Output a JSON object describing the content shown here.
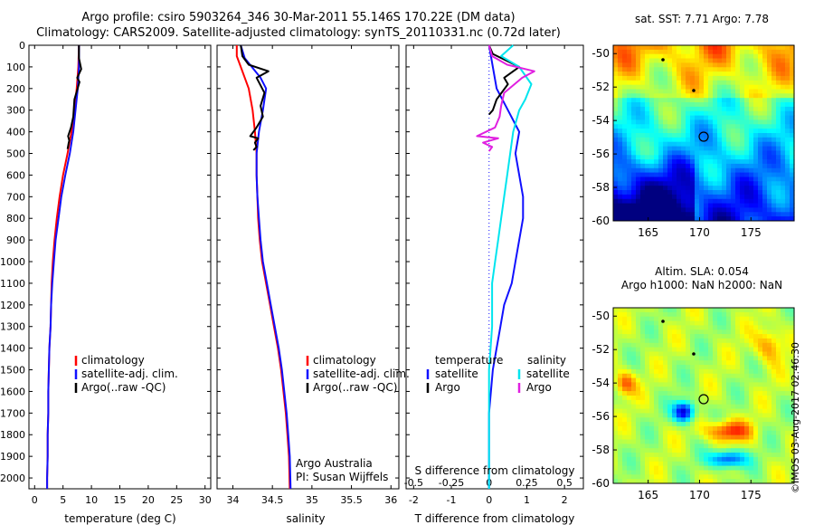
{
  "header": {
    "title_line1": "Argo profile: csiro 5903264_346 30-Mar-2011 55.146S 170.22E (DM data)",
    "title_line2": "Climatology: CARS2009. Satellite-adjusted climatology: synTS_20110331.nc (0.72d later)"
  },
  "map_top": {
    "title": "sat. SST: 7.71 Argo: 7.78",
    "xticks": [
      165,
      170,
      175
    ],
    "yticks": [
      -50,
      -52,
      -54,
      -56,
      -58,
      -60
    ]
  },
  "map_bottom": {
    "title_line1": "Altim. SLA: 0.054",
    "title_line2": "Argo h1000: NaN h2000: NaN",
    "xticks": [
      165,
      170,
      175
    ],
    "yticks": [
      -50,
      -52,
      -54,
      -56,
      -58,
      -60
    ]
  },
  "footer": {
    "stamp": "©IMOS 03-Aug-2017 02:46:30",
    "credit_line1": "Argo Australia",
    "credit_line2": "PI: Susan Wijffels"
  },
  "colors": {
    "climatology": "#ff0000",
    "satellite": "#1010ff",
    "argo": "#000000",
    "sal_satellite": "#00e5ee",
    "sal_argo": "#e020e0"
  },
  "chart_data": [
    {
      "type": "line",
      "xlabel": "temperature (deg C)",
      "ylabel": "",
      "xlim": [
        -1,
        31
      ],
      "xticks": [
        0,
        5,
        10,
        15,
        20,
        25,
        30
      ],
      "ylim": [
        2050,
        0
      ],
      "yticks": [
        0,
        100,
        200,
        300,
        400,
        500,
        600,
        700,
        800,
        900,
        1000,
        1100,
        1200,
        1300,
        1400,
        1500,
        1600,
        1700,
        1800,
        1900,
        2000
      ],
      "legend": [
        "climatology",
        "satellite-adj. clim.",
        "Argo(..raw -QC)"
      ],
      "series": [
        {
          "name": "climatology",
          "x": [
            7.8,
            7.7,
            7.4,
            7.0,
            6.5,
            5.8,
            5.0,
            4.4,
            3.9,
            3.5,
            3.2,
            3.0,
            2.9,
            2.8,
            2.6,
            2.5,
            2.4,
            2.4,
            2.3,
            2.3,
            2.2,
            2.2
          ],
          "y": [
            0,
            100,
            200,
            300,
            400,
            500,
            600,
            700,
            800,
            900,
            1000,
            1100,
            1200,
            1300,
            1400,
            1500,
            1600,
            1700,
            1800,
            1900,
            2000,
            2050
          ]
        },
        {
          "name": "satellite-adj. clim.",
          "x": [
            7.8,
            7.8,
            7.6,
            7.2,
            6.8,
            6.2,
            5.4,
            4.7,
            4.2,
            3.7,
            3.4,
            3.1,
            2.9,
            2.8,
            2.6,
            2.5,
            2.4,
            2.4,
            2.3,
            2.3,
            2.2,
            2.2
          ],
          "y": [
            0,
            100,
            200,
            300,
            400,
            500,
            600,
            700,
            800,
            900,
            1000,
            1100,
            1200,
            1300,
            1400,
            1500,
            1600,
            1700,
            1800,
            1900,
            2000,
            2050
          ]
        },
        {
          "name": "Argo(..raw -QC)",
          "x": [
            7.8,
            7.8,
            8.2,
            7.5,
            7.9,
            7.0,
            6.8,
            6.4,
            5.9,
            6.1,
            6.0,
            5.8
          ],
          "y": [
            0,
            60,
            110,
            150,
            170,
            250,
            330,
            380,
            420,
            440,
            450,
            480
          ]
        }
      ]
    },
    {
      "type": "line",
      "xlabel": "salinity",
      "ylabel": "",
      "xlim": [
        33.8,
        36.1
      ],
      "xticks": [
        34,
        34.5,
        35,
        35.5,
        36
      ],
      "ylim": [
        2050,
        0
      ],
      "legend": [
        "climatology",
        "satellite-adj. clim.",
        "Argo(..raw -QC)"
      ],
      "series": [
        {
          "name": "climatology",
          "x": [
            34.05,
            34.05,
            34.1,
            34.2,
            34.25,
            34.28,
            34.3,
            34.3,
            34.31,
            34.32,
            34.34,
            34.37,
            34.42,
            34.47,
            34.52,
            34.57,
            34.61,
            34.64,
            34.67,
            34.69,
            34.71,
            34.72
          ],
          "y": [
            0,
            50,
            100,
            200,
            300,
            400,
            500,
            600,
            700,
            800,
            900,
            1000,
            1100,
            1200,
            1300,
            1400,
            1500,
            1600,
            1700,
            1800,
            1900,
            2050
          ]
        },
        {
          "name": "satellite-adj. clim.",
          "x": [
            34.1,
            34.15,
            34.35,
            34.42,
            34.38,
            34.33,
            34.3,
            34.3,
            34.31,
            34.33,
            34.35,
            34.38,
            34.43,
            34.48,
            34.53,
            34.58,
            34.62,
            34.65,
            34.68,
            34.7,
            34.72,
            34.73
          ],
          "y": [
            0,
            60,
            150,
            200,
            300,
            400,
            500,
            600,
            700,
            800,
            900,
            1000,
            1100,
            1200,
            1300,
            1400,
            1500,
            1600,
            1700,
            1800,
            1900,
            2050
          ]
        },
        {
          "name": "Argo(..raw -QC)",
          "x": [
            34.1,
            34.12,
            34.2,
            34.45,
            34.3,
            34.4,
            34.35,
            34.38,
            34.3,
            34.22,
            34.32,
            34.28,
            34.3,
            34.26
          ],
          "y": [
            0,
            50,
            90,
            120,
            150,
            220,
            280,
            330,
            380,
            420,
            430,
            450,
            470,
            485
          ]
        }
      ]
    },
    {
      "type": "line",
      "xlabel": "T difference from climatology",
      "xlabel2": "S difference from climatology",
      "xlim": [
        -2.2,
        2.5
      ],
      "xticks": [
        -2,
        -1,
        0,
        1,
        2
      ],
      "xticks2": [
        -0.5,
        -0.25,
        0,
        0.25,
        0.5
      ],
      "ylim": [
        2050,
        0
      ],
      "legend_left_title": "temperature",
      "legend_right_title": "salinity",
      "legend": [
        "satellite",
        "Argo",
        "satellite",
        "Argo"
      ],
      "series": [
        {
          "name": "temperature satellite",
          "x": [
            0.0,
            0.1,
            0.2,
            0.5,
            0.8,
            0.7,
            0.8,
            0.9,
            0.9,
            0.8,
            0.7,
            0.6,
            0.4,
            0.3,
            0.2,
            0.1,
            0.05,
            0.0,
            0.0
          ],
          "y": [
            0,
            100,
            200,
            300,
            400,
            500,
            600,
            700,
            800,
            900,
            1000,
            1100,
            1200,
            1300,
            1400,
            1500,
            1600,
            1700,
            2050
          ]
        },
        {
          "name": "temperature Argo",
          "x": [
            0.0,
            0.1,
            0.8,
            0.4,
            0.5,
            0.2,
            0.1,
            0.0
          ],
          "y": [
            0,
            40,
            100,
            150,
            180,
            250,
            300,
            320
          ]
        },
        {
          "name": "salinity satellite",
          "x": [
            0.16,
            0.08,
            0.2,
            0.28,
            0.24,
            0.2,
            0.16,
            0.14,
            0.12,
            0.1,
            0.08,
            0.06,
            0.04,
            0.02,
            0.02,
            0.02,
            0.01,
            0.0,
            0.0
          ],
          "y": [
            0,
            50,
            100,
            180,
            250,
            300,
            400,
            500,
            600,
            700,
            800,
            900,
            1000,
            1100,
            1200,
            1300,
            1400,
            1500,
            2050
          ]
        },
        {
          "name": "salinity Argo",
          "x": [
            0.0,
            0.02,
            0.12,
            0.3,
            0.22,
            0.1,
            0.08,
            0.07,
            0.04,
            -0.08,
            0.06,
            -0.04,
            0.02,
            0.0
          ],
          "y": [
            0,
            50,
            90,
            120,
            150,
            220,
            280,
            330,
            380,
            420,
            430,
            450,
            470,
            490
          ]
        }
      ]
    }
  ]
}
